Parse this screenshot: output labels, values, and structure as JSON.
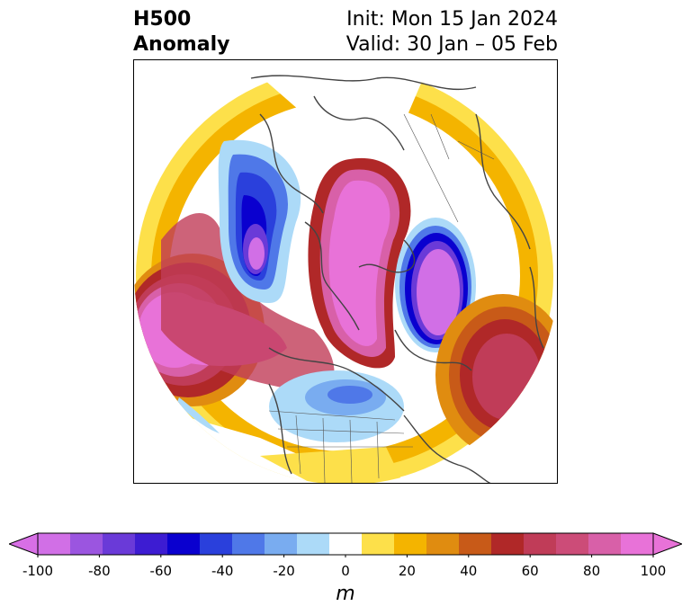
{
  "header": {
    "variable": "H500",
    "field": "Anomaly",
    "init": "Init: Mon 15 Jan 2024",
    "valid": "Valid: 30 Jan – 05 Feb"
  },
  "colorbar": {
    "label": "m",
    "ticks": [
      "-100",
      "-80",
      "-60",
      "-40",
      "-20",
      "0",
      "20",
      "40",
      "60",
      "80",
      "100"
    ],
    "levels": [
      -100,
      -90,
      -80,
      -70,
      -60,
      -50,
      -40,
      -30,
      -20,
      -10,
      10,
      20,
      30,
      40,
      50,
      60,
      70,
      80,
      90,
      100
    ],
    "colors": [
      "#d16fe6",
      "#9b55e0",
      "#6a3ad8",
      "#3d1cd2",
      "#0a00cf",
      "#2a40dc",
      "#4f78e8",
      "#79acf0",
      "#acdaf8",
      "#ffffff",
      "#fde04a",
      "#f4b400",
      "#e08c10",
      "#c85a18",
      "#b02828",
      "#c03c58",
      "#cc4c78",
      "#d860a8",
      "#e872d8"
    ],
    "under_color": "#d86fe6",
    "over_color": "#e872d8"
  },
  "map": {
    "projection": "north-polar-stereographic",
    "features": [
      "coastlines",
      "country-borders",
      "state-borders"
    ]
  }
}
